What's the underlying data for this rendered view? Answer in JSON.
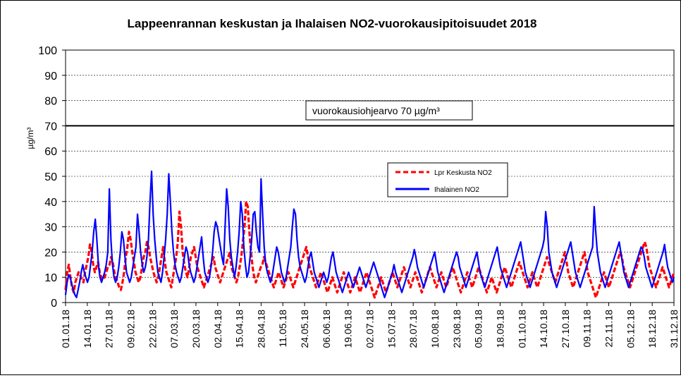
{
  "chart_data": {
    "type": "line",
    "title": "Lappeenrannan keskustan ja Ihalaisen NO2-vuorokausipitoisuudet 2018",
    "ylabel": "µg/m³",
    "xlabel": "",
    "ylim": [
      0,
      100
    ],
    "yticks": [
      "0",
      "10",
      "20",
      "30",
      "40",
      "50",
      "60",
      "70",
      "80",
      "90",
      "100"
    ],
    "xtick_labels": [
      "01.01.18",
      "14.01.18",
      "27.01.18",
      "09.02.18",
      "22.02.18",
      "07.03.18",
      "20.03.18",
      "02.04.18",
      "15.04.18",
      "28.04.18",
      "11.05.18",
      "24.05.18",
      "06.06.18",
      "19.06.18",
      "02.07.18",
      "15.07.18",
      "28.07.18",
      "10.08.18",
      "23.08.18",
      "05.09.18",
      "18.09.18",
      "01.10.18",
      "14.10.18",
      "27.10.18",
      "09.11.18",
      "22.11.18",
      "05.12.18",
      "18.12.18",
      "31.12.18"
    ],
    "grid": true,
    "legend_position": "center-right",
    "reference_line": {
      "value": 70,
      "label": "vuorokausiohjearvo  70 µg/m³",
      "color": "#000000"
    },
    "series": [
      {
        "name": "Lpr Keskusta NO2",
        "color": "#ff0000",
        "style": "dashed",
        "values": [
          5,
          12,
          15,
          10,
          6,
          4,
          8,
          10,
          12,
          11,
          9,
          8,
          12,
          15,
          18,
          23,
          20,
          15,
          12,
          14,
          16,
          12,
          10,
          9,
          10,
          12,
          14,
          15,
          18,
          16,
          12,
          10,
          8,
          6,
          5,
          8,
          12,
          18,
          22,
          28,
          25,
          20,
          16,
          12,
          10,
          8,
          10,
          14,
          18,
          20,
          24,
          22,
          18,
          15,
          12,
          10,
          8,
          10,
          14,
          18,
          22,
          16,
          12,
          10,
          8,
          6,
          10,
          14,
          18,
          24,
          36,
          30,
          20,
          15,
          12,
          10,
          14,
          18,
          20,
          22,
          18,
          14,
          12,
          10,
          8,
          6,
          8,
          10,
          12,
          14,
          16,
          18,
          14,
          12,
          10,
          8,
          10,
          12,
          14,
          16,
          18,
          20,
          14,
          12,
          10,
          8,
          10,
          14,
          18,
          24,
          30,
          40,
          38,
          28,
          20,
          14,
          10,
          8,
          10,
          12,
          14,
          15,
          18,
          16,
          14,
          12,
          10,
          8,
          6,
          8,
          10,
          12,
          10,
          8,
          6,
          8,
          10,
          12,
          10,
          8,
          6,
          8,
          10,
          12,
          14,
          16,
          18,
          20,
          22,
          18,
          14,
          12,
          10,
          8,
          6,
          8,
          10,
          12,
          10,
          8,
          6,
          4,
          6,
          8,
          10,
          8,
          6,
          4,
          6,
          8,
          10,
          12,
          10,
          8,
          6,
          4,
          6,
          8,
          10,
          8,
          6,
          4,
          6,
          8,
          10,
          12,
          10,
          8,
          6,
          4,
          2,
          4,
          6,
          8,
          10,
          8,
          6,
          4,
          6,
          8,
          10,
          12,
          10,
          8,
          6,
          8,
          10,
          12,
          14,
          12,
          10,
          8,
          6,
          8,
          10,
          12,
          10,
          8,
          6,
          4,
          6,
          8,
          10,
          12,
          14,
          12,
          10,
          8,
          6,
          8,
          10,
          12,
          10,
          8,
          6,
          8,
          10,
          12,
          14,
          12,
          10,
          8,
          6,
          4,
          6,
          8,
          10,
          12,
          10,
          8,
          6,
          8,
          10,
          12,
          14,
          12,
          10,
          8,
          6,
          4,
          6,
          8,
          10,
          8,
          6,
          4,
          6,
          8,
          10,
          12,
          14,
          12,
          10,
          8,
          6,
          8,
          10,
          12,
          14,
          16,
          14,
          12,
          10,
          8,
          6,
          8,
          10,
          12,
          10,
          8,
          6,
          8,
          10,
          12,
          14,
          16,
          18,
          16,
          14,
          12,
          10,
          8,
          10,
          12,
          14,
          16,
          18,
          20,
          16,
          12,
          10,
          8,
          6,
          8,
          10,
          12,
          14,
          16,
          18,
          20,
          16,
          12,
          10,
          8,
          6,
          4,
          2,
          4,
          6,
          8,
          10,
          12,
          10,
          8,
          6,
          8,
          10,
          12,
          14,
          16,
          18,
          20,
          18,
          14,
          12,
          10,
          8,
          6,
          8,
          10,
          12,
          14,
          16,
          18,
          20,
          22,
          24,
          22,
          18,
          14,
          12,
          10,
          8,
          6,
          8,
          10,
          12,
          14,
          12,
          10,
          8,
          6,
          8,
          10,
          12
        ]
      },
      {
        "name": "Ihalainen NO2",
        "color": "#0000ff",
        "style": "solid",
        "values": [
          3,
          8,
          11,
          10,
          7,
          5,
          3,
          2,
          5,
          8,
          12,
          15,
          12,
          10,
          8,
          10,
          15,
          20,
          28,
          33,
          25,
          15,
          10,
          8,
          10,
          12,
          15,
          20,
          45,
          25,
          15,
          10,
          8,
          10,
          14,
          20,
          28,
          25,
          18,
          12,
          10,
          8,
          10,
          14,
          18,
          22,
          35,
          28,
          20,
          15,
          12,
          14,
          18,
          25,
          40,
          52,
          35,
          25,
          18,
          12,
          10,
          8,
          12,
          18,
          25,
          35,
          51,
          40,
          28,
          20,
          15,
          12,
          10,
          8,
          10,
          14,
          18,
          22,
          20,
          15,
          12,
          10,
          8,
          10,
          14,
          18,
          22,
          26,
          18,
          12,
          10,
          8,
          10,
          14,
          20,
          28,
          32,
          30,
          26,
          22,
          18,
          15,
          30,
          45,
          38,
          25,
          18,
          14,
          10,
          14,
          20,
          28,
          40,
          35,
          22,
          15,
          10,
          12,
          18,
          25,
          35,
          36,
          28,
          22,
          20,
          49,
          35,
          22,
          15,
          12,
          10,
          8,
          10,
          14,
          18,
          22,
          20,
          16,
          12,
          10,
          8,
          10,
          14,
          18,
          22,
          30,
          37,
          35,
          25,
          18,
          14,
          12,
          10,
          8,
          10,
          14,
          18,
          20,
          16,
          12,
          10,
          8,
          6,
          8,
          10,
          12,
          10,
          8,
          10,
          14,
          18,
          20,
          16,
          12,
          10,
          8,
          6,
          4,
          6,
          8,
          10,
          12,
          10,
          8,
          6,
          8,
          10,
          12,
          14,
          12,
          10,
          8,
          6,
          8,
          10,
          12,
          14,
          16,
          14,
          12,
          10,
          8,
          6,
          4,
          2,
          4,
          6,
          8,
          10,
          12,
          15,
          12,
          10,
          8,
          6,
          4,
          6,
          8,
          10,
          12,
          14,
          16,
          18,
          21,
          18,
          14,
          12,
          10,
          8,
          6,
          8,
          10,
          12,
          14,
          16,
          18,
          20,
          16,
          12,
          10,
          8,
          6,
          4,
          6,
          8,
          10,
          12,
          14,
          16,
          18,
          20,
          18,
          14,
          12,
          10,
          8,
          6,
          8,
          10,
          12,
          14,
          16,
          18,
          20,
          16,
          12,
          10,
          8,
          6,
          8,
          10,
          12,
          14,
          16,
          18,
          20,
          22,
          18,
          14,
          12,
          10,
          8,
          6,
          8,
          10,
          12,
          14,
          16,
          18,
          20,
          22,
          24,
          20,
          16,
          12,
          10,
          8,
          6,
          8,
          10,
          12,
          14,
          16,
          18,
          20,
          22,
          25,
          36,
          30,
          20,
          16,
          12,
          10,
          8,
          6,
          8,
          10,
          12,
          14,
          16,
          18,
          20,
          22,
          24,
          20,
          16,
          12,
          10,
          8,
          6,
          8,
          10,
          12,
          14,
          16,
          18,
          20,
          22,
          38,
          28,
          20,
          16,
          12,
          10,
          8,
          6,
          8,
          10,
          12,
          14,
          16,
          18,
          20,
          22,
          24,
          20,
          16,
          12,
          10,
          8,
          6,
          8,
          10,
          12,
          14,
          16,
          18,
          20,
          22,
          21,
          18,
          14,
          12,
          10,
          8,
          6,
          8,
          10,
          12,
          14,
          16,
          18,
          20,
          23,
          18,
          14,
          12,
          10,
          8,
          10
        ]
      }
    ]
  }
}
